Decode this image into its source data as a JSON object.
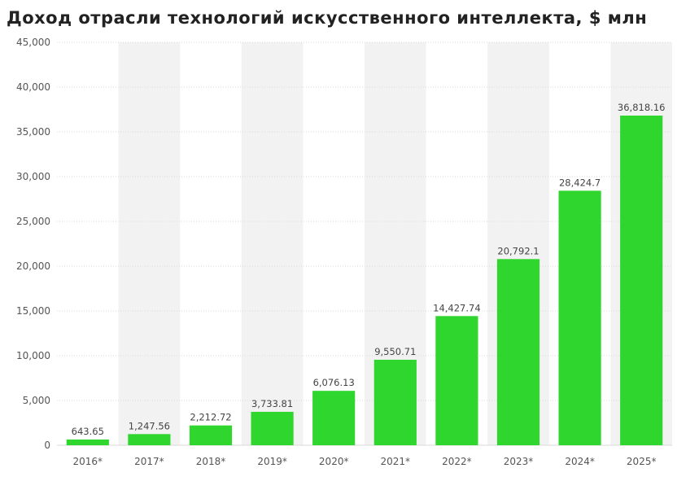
{
  "chart_data": {
    "type": "bar",
    "title": "Доход отрасли технологий искусственного интеллекта, $ млн",
    "xlabel": "",
    "ylabel": "",
    "categories": [
      "2016*",
      "2017*",
      "2018*",
      "2019*",
      "2020*",
      "2021*",
      "2022*",
      "2023*",
      "2024*",
      "2025*"
    ],
    "values": [
      643.65,
      1247.56,
      2212.72,
      3733.81,
      6076.13,
      9550.71,
      14427.74,
      20792.1,
      28424.7,
      36818.16
    ],
    "value_labels": [
      "643.65",
      "1,247.56",
      "2,212.72",
      "3,733.81",
      "6,076.13",
      "9,550.71",
      "14,427.74",
      "20,792.1",
      "28,424.7",
      "36,818.16"
    ],
    "ylim": [
      0,
      45000
    ],
    "yticks": [
      0,
      5000,
      10000,
      15000,
      20000,
      25000,
      30000,
      35000,
      40000,
      45000
    ],
    "ytick_labels": [
      "0",
      "5,000",
      "10,000",
      "15,000",
      "20,000",
      "25,000",
      "30,000",
      "35,000",
      "40,000",
      "45,000"
    ],
    "grid": true,
    "legend": "none",
    "colors": {
      "bar": "#2ed62e",
      "grid": "#d9d9d9",
      "band": "#f2f2f2"
    }
  }
}
